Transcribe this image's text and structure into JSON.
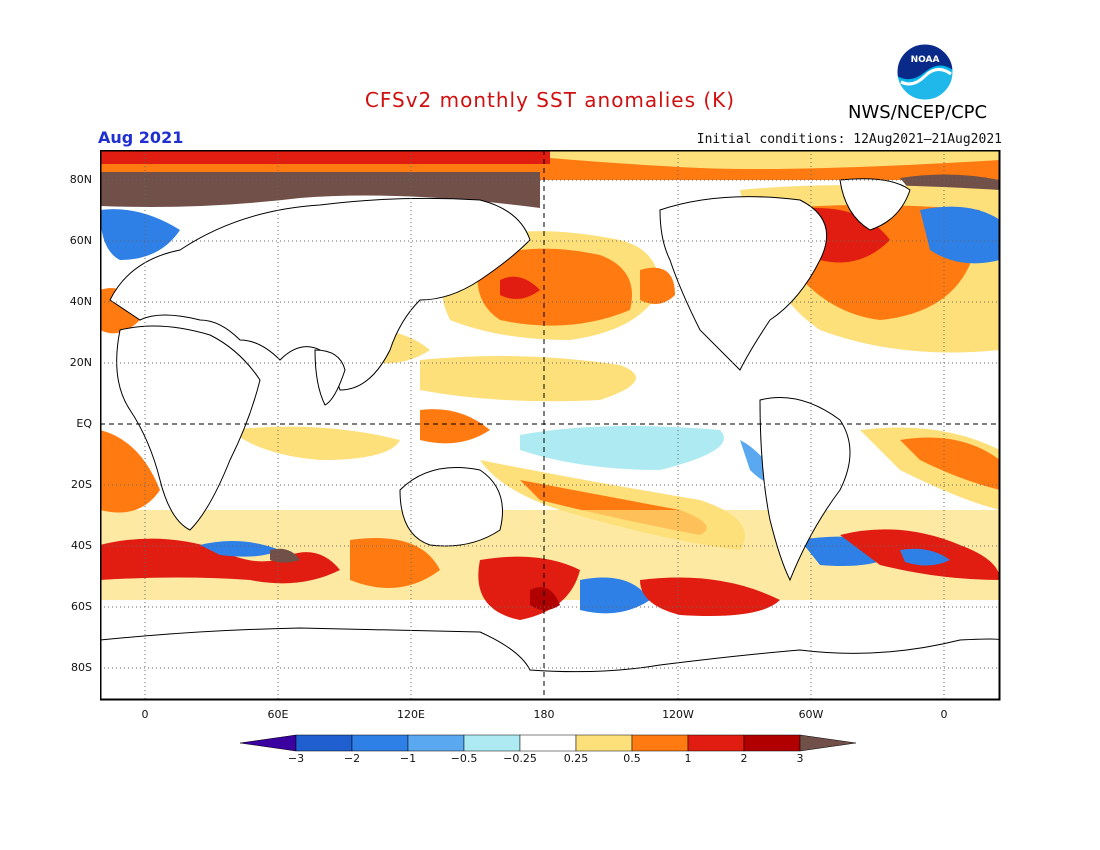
{
  "header": {
    "title": "CFSv2 monthly SST anomalies (K)",
    "agency": "NWS/NCEP/CPC",
    "logo_text": "NOAA",
    "month_label": "Aug 2021",
    "initial_conditions": "Initial conditions: 12Aug2021–21Aug2021"
  },
  "map": {
    "lat_labels": [
      "80N",
      "60N",
      "40N",
      "20N",
      "EQ",
      "20S",
      "40S",
      "60S",
      "80S"
    ],
    "lon_labels": [
      "0",
      "60E",
      "120E",
      "180",
      "120W",
      "60W",
      "0"
    ]
  },
  "colorbar": {
    "tick_labels": [
      "−3",
      "−2",
      "−1",
      "−0.5",
      "−0.25",
      "0.25",
      "0.5",
      "1",
      "2",
      "3"
    ],
    "colors": [
      "#3a00a0",
      "#1f5fd0",
      "#2e7fe6",
      "#5aa8f0",
      "#aeeaf2",
      "#ffffff",
      "#fde07a",
      "#ff7a10",
      "#e01d10",
      "#b00000",
      "#705048"
    ]
  },
  "colors": {
    "land": "#ffffff",
    "title": "#d01010",
    "month": "#2030d0"
  }
}
